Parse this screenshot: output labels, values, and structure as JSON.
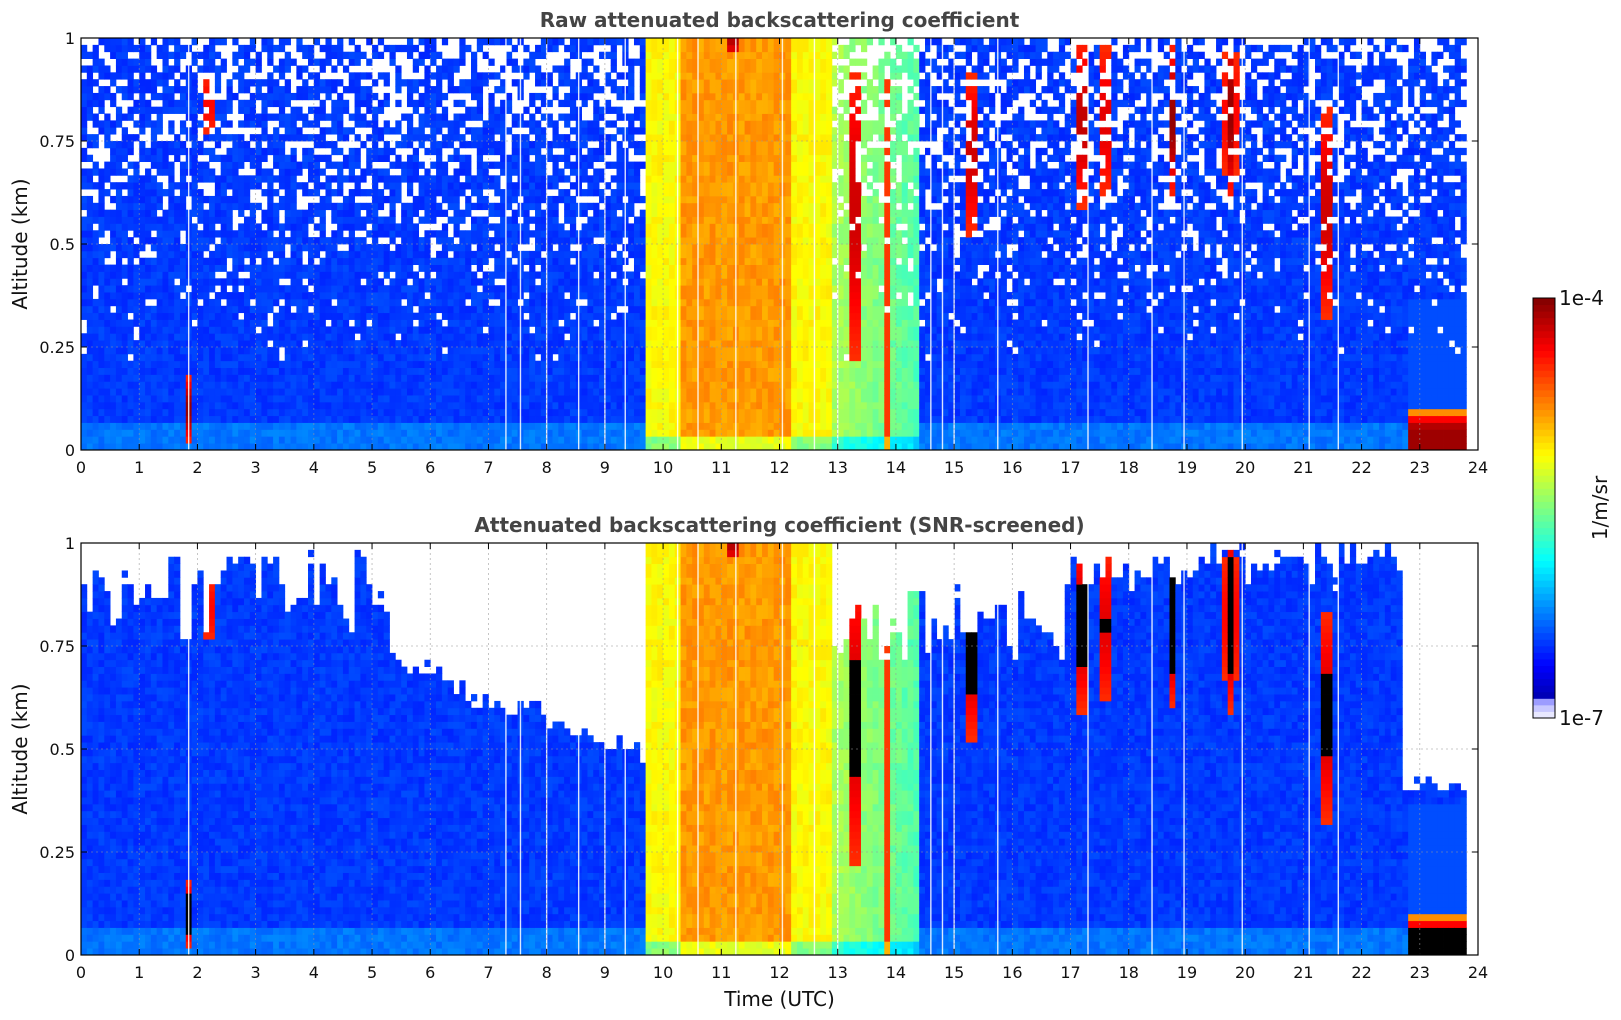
{
  "chart_data": [
    {
      "type": "heatmap",
      "title": "Raw attenuated backscattering coefficient",
      "xlabel": "",
      "ylabel": "Altitude (km)",
      "xlim": [
        0,
        24
      ],
      "ylim": [
        0,
        1
      ],
      "xticks": [
        "0",
        "1",
        "2",
        "3",
        "4",
        "5",
        "6",
        "7",
        "8",
        "9",
        "10",
        "11",
        "12",
        "13",
        "14",
        "15",
        "16",
        "17",
        "18",
        "19",
        "20",
        "21",
        "22",
        "23",
        "24"
      ],
      "yticks": [
        "0",
        "0.25",
        "0.5",
        "0.75",
        "1"
      ],
      "grid": true,
      "screened": false
    },
    {
      "type": "heatmap",
      "title": "Attenuated backscattering coefficient (SNR-screened)",
      "xlabel": "Time (UTC)",
      "ylabel": "Altitude (km)",
      "xlim": [
        0,
        24
      ],
      "ylim": [
        0,
        1
      ],
      "xticks": [
        "0",
        "1",
        "2",
        "3",
        "4",
        "5",
        "6",
        "7",
        "8",
        "9",
        "10",
        "11",
        "12",
        "13",
        "14",
        "15",
        "16",
        "17",
        "18",
        "19",
        "20",
        "21",
        "22",
        "23",
        "24"
      ],
      "yticks": [
        "0",
        "0.25",
        "0.5",
        "0.75",
        "1"
      ],
      "grid": true,
      "screened": true
    }
  ],
  "colorbar": {
    "label": "1/m/sr",
    "max_label": "1e-4",
    "min_label": "1e-7",
    "scale": "log",
    "range": [
      1e-07,
      0.0001
    ],
    "colormap": "jet"
  }
}
